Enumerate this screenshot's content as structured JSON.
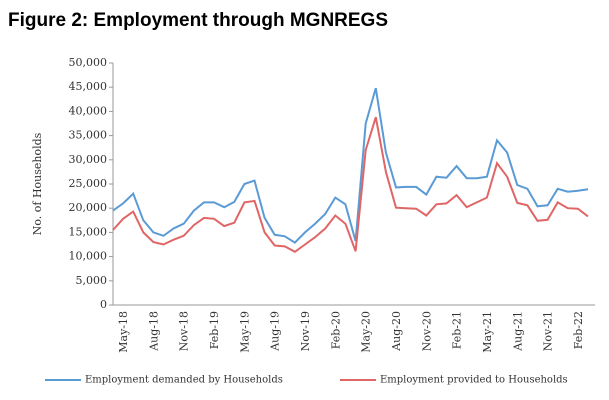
{
  "chart_data": {
    "type": "line",
    "title": "Figure 2: Employment through MGNREGS",
    "ylabel": "No. of Households",
    "categories": [
      null,
      "May-18",
      null,
      null,
      "Aug-18",
      null,
      null,
      "Nov-18",
      null,
      null,
      "Feb-19",
      null,
      null,
      "May-19",
      null,
      null,
      "Aug-19",
      null,
      null,
      "Nov-19",
      null,
      null,
      "Feb-20",
      null,
      null,
      "May-20",
      null,
      null,
      "Aug-20",
      null,
      null,
      "Nov-20",
      null,
      null,
      "Feb-21",
      null,
      null,
      "May-21",
      null,
      null,
      "Aug-21",
      null,
      null,
      "Nov-21",
      null,
      null,
      "Feb-22",
      null
    ],
    "series": [
      {
        "name": "Employment demanded by Households",
        "color": "#5b9bd5",
        "values": [
          19500,
          21000,
          23000,
          17500,
          15000,
          14300,
          15800,
          16800,
          19500,
          21200,
          21200,
          20200,
          21300,
          25000,
          25700,
          18000,
          14500,
          14200,
          12900,
          15000,
          16800,
          18800,
          22200,
          20800,
          13200,
          37500,
          44800,
          31500,
          24300,
          24400,
          24400,
          22800,
          26500,
          26300,
          28700,
          26200,
          26200,
          26500,
          34000,
          31500,
          24800,
          24000,
          20400,
          20600,
          24000,
          23400,
          23600,
          23900
        ]
      },
      {
        "name": "Employment provided to Households",
        "color": "#e06666",
        "values": [
          15500,
          17800,
          19300,
          15000,
          13000,
          12500,
          13500,
          14300,
          16500,
          18000,
          17800,
          16300,
          17000,
          21200,
          21500,
          15000,
          12300,
          12100,
          11000,
          12500,
          14000,
          15800,
          18500,
          16800,
          11100,
          32000,
          38800,
          27500,
          20100,
          20000,
          19900,
          18500,
          20800,
          21000,
          22700,
          20200,
          21200,
          22200,
          29300,
          26500,
          21100,
          20600,
          17400,
          17600,
          21200,
          20000,
          19900,
          18300
        ]
      }
    ],
    "ylim": [
      0,
      50000
    ],
    "yticks": [
      0,
      {
        "value": 5000,
        "label": "5,000"
      },
      {
        "value": 10000,
        "label": "10,000"
      },
      {
        "value": 15000,
        "label": "15,000"
      },
      {
        "value": 20000,
        "label": "20,000"
      },
      {
        "value": 25000,
        "label": "25,000"
      },
      {
        "value": 30000,
        "label": "30,000"
      },
      {
        "value": 35000,
        "label": "35,000"
      },
      {
        "value": 40000,
        "label": "40,000"
      },
      {
        "value": 45000,
        "label": "45,000"
      },
      {
        "value": 50000,
        "label": "50,000"
      }
    ],
    "legend": "bottom",
    "grid": false
  }
}
